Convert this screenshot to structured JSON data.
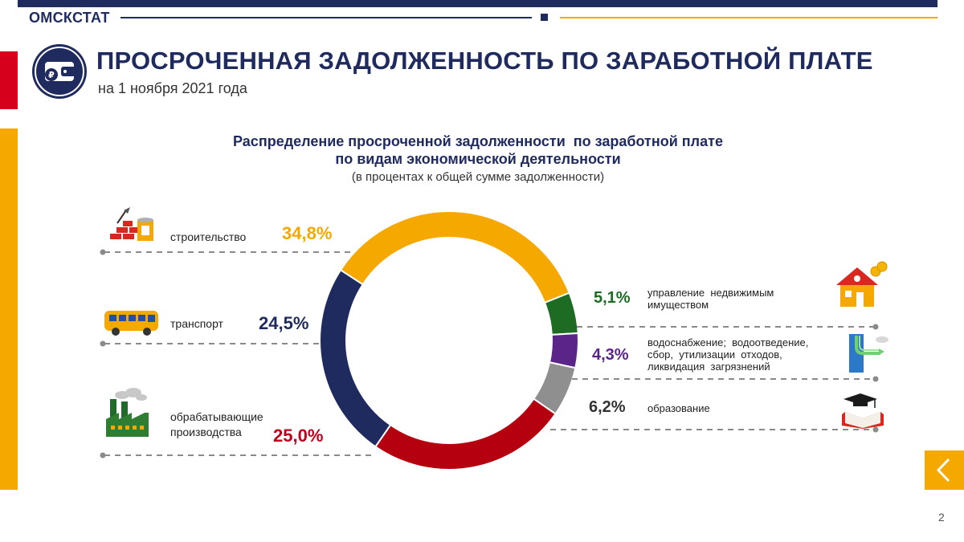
{
  "header": {
    "brand": "ОМСКСТАТ",
    "title": "ПРОСРОЧЕННАЯ ЗАДОЛЖЕННОСТЬ ПО ЗАРАБОТНОЙ ПЛАТЕ",
    "subtitle": "на 1 ноября 2021 года",
    "logo_icon": "wallet-ruble-icon"
  },
  "colors": {
    "navy": "#1f2a5e",
    "accent_yellow": "#f5a800",
    "accent_red": "#d6001c"
  },
  "chart_data": {
    "type": "pie",
    "variant": "donut",
    "title_line1": "Распределение просроченной задолженности  по заработной плате",
    "title_line2": "по видам экономической деятельности",
    "note": "(в процентах к общей сумме задолженности)",
    "slices": [
      {
        "key": "construction",
        "label": "строительство",
        "value": 34.8,
        "value_label": "34,8%",
        "color": "#f5a800",
        "icon": "bricks-paint-icon"
      },
      {
        "key": "real_estate",
        "label_line1": "управление  недвижимым",
        "label_line2": "имуществом",
        "value": 5.1,
        "value_label": "5,1%",
        "color": "#1e6b24",
        "icon": "house-coins-icon"
      },
      {
        "key": "water",
        "label_line1": "водоснабжение;  водоотведение,",
        "label_line2": "сбор,  утилизации  отходов,",
        "label_line3": "ликвидация  загрязнений",
        "value": 4.3,
        "value_label": "4,3%",
        "color": "#5b2489",
        "icon": "water-pipe-icon"
      },
      {
        "key": "education",
        "label": "образование",
        "value": 6.2,
        "value_label": "6,2%",
        "color": "#8f8f8f",
        "icon": "graduation-cap-book-icon"
      },
      {
        "key": "manufacturing",
        "label_line1": "обрабатывающие",
        "label_line2": "производства",
        "value": 25.0,
        "value_label": "25,0%",
        "color": "#b5000f",
        "icon": "factory-icon"
      },
      {
        "key": "transport",
        "label": "транспорт",
        "value": 24.5,
        "value_label": "24,5%",
        "color": "#1f2a5e",
        "icon": "bus-icon"
      }
    ],
    "start_angle_deg": -57,
    "direction": "clockwise",
    "legend": "callouts"
  },
  "footer": {
    "page_number": "2",
    "back_icon": "chevron-left-icon"
  }
}
